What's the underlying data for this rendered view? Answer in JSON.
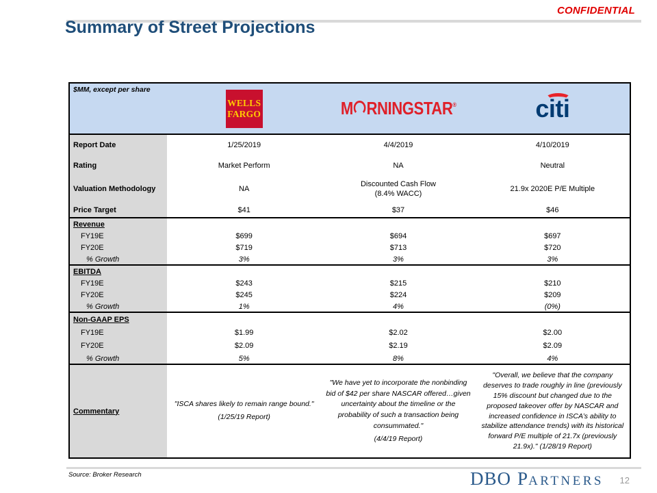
{
  "header": {
    "confidential": "CONFIDENTIAL",
    "title": "Summary of Street Projections"
  },
  "table": {
    "units_label": "$MM, except per share",
    "brokers": [
      "Wells Fargo",
      "Morningstar",
      "Citi"
    ],
    "logos": {
      "wells_fargo": {
        "line1": "WELLS",
        "line2": "FARGO"
      },
      "morningstar": {
        "pre": "M",
        "post": "RNINGSTAR",
        "reg": "®"
      },
      "citi": {
        "text": "citi"
      }
    },
    "info_rows": [
      {
        "label": "Report Date",
        "values": [
          "1/25/2019",
          "4/4/2019",
          "4/10/2019"
        ]
      },
      {
        "label": "Rating",
        "values": [
          "Market Perform",
          "NA",
          "Neutral"
        ]
      },
      {
        "label": "Valuation Methodology",
        "values": [
          "NA",
          "Discounted Cash Flow",
          "21.9x 2020E P/E Multiple"
        ]
      },
      {
        "label": "Price Target",
        "values": [
          "$41",
          "$37",
          "$46"
        ]
      }
    ],
    "valuation_sub": "(8.4% WACC)",
    "sections": [
      {
        "title": "Revenue",
        "rows": [
          {
            "label": "FY19E",
            "values": [
              "$699",
              "$694",
              "$697"
            ]
          },
          {
            "label": "FY20E",
            "values": [
              "$719",
              "$713",
              "$720"
            ]
          },
          {
            "label": "% Growth",
            "values": [
              "3%",
              "3%",
              "3%"
            ]
          }
        ]
      },
      {
        "title": "EBITDA",
        "rows": [
          {
            "label": "FY19E",
            "values": [
              "$243",
              "$215",
              "$210"
            ]
          },
          {
            "label": "FY20E",
            "values": [
              "$245",
              "$224",
              "$209"
            ]
          },
          {
            "label": "% Growth",
            "values": [
              "1%",
              "4%",
              "(0%)"
            ]
          }
        ]
      },
      {
        "title": "Non-GAAP EPS",
        "rows": [
          {
            "label": "FY19E",
            "values": [
              "$1.99",
              "$2.02",
              "$2.00"
            ]
          },
          {
            "label": "FY20E",
            "values": [
              "$2.09",
              "$2.19",
              "$2.09"
            ]
          },
          {
            "label": "% Growth",
            "values": [
              "5%",
              "8%",
              "4%"
            ]
          }
        ]
      }
    ],
    "commentary": {
      "label": "Commentary",
      "entries": [
        {
          "quote": "\"ISCA shares likely to remain range bound.\"",
          "report": "(1/25/19 Report)"
        },
        {
          "quote": "\"We have yet to incorporate the nonbinding bid of $42 per share NASCAR offered…given uncertainty about the timeline or the probability of such a transaction being consummated.\"",
          "report": "(4/4/19 Report)"
        },
        {
          "quote": "\"Overall, we believe that the company deserves to trade roughly in line (previously 15% discount but changed due to the proposed takeover offer by NASCAR and increased confidence in ISCA’s ability to stabilize attendance trends) with its historical forward P/E multiple of 21.7x (previously 21.9x).\"",
          "report": "(1/28/19 Report)"
        }
      ]
    }
  },
  "footer": {
    "source": "Source: Broker Research",
    "logo": {
      "dbo": "DBO",
      "p": "P",
      "artners": "ARTNERS"
    },
    "page_number": "12"
  },
  "colors": {
    "header_band": "#C6D9F1",
    "label_column": "#D9D9D9",
    "title_blue": "#1F4E79",
    "confidential_red": "#E00000",
    "wells_fargo_red": "#C8102E",
    "wells_fargo_yellow": "#FFCC02",
    "morningstar_red": "#DF2029",
    "citi_blue": "#013B72",
    "citi_arc_red": "#E8242B",
    "dbo_blue": "#2B5A8B"
  }
}
